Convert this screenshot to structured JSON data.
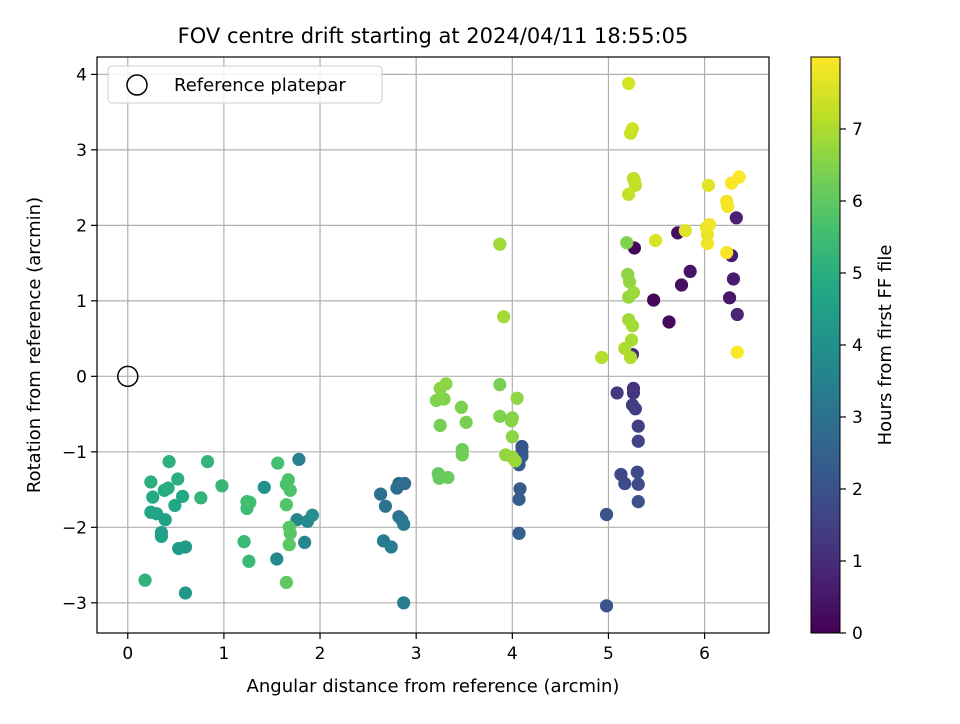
{
  "chart_data": {
    "type": "scatter",
    "title": "FOV centre drift starting at 2024/04/11 18:55:05",
    "xlabel": "Angular distance from reference (arcmin)",
    "ylabel": "Rotation from reference (arcmin)",
    "xlim": [
      -0.32,
      6.67
    ],
    "ylim": [
      -3.4,
      4.23
    ],
    "x_ticks": [
      0,
      1,
      2,
      3,
      4,
      5,
      6
    ],
    "y_ticks": [
      -3,
      -2,
      -1,
      0,
      1,
      2,
      3,
      4
    ],
    "grid": true,
    "legend": {
      "placement": "top-left",
      "entries": [
        "Reference platepar"
      ]
    },
    "reference_point": {
      "x": 0,
      "y": 0
    },
    "colorbar": {
      "label": "Hours from first FF file",
      "colormap": "viridis",
      "range": [
        0,
        8
      ],
      "ticks": [
        0,
        1,
        2,
        3,
        4,
        5,
        6,
        7
      ]
    },
    "points": [
      {
        "x": 5.27,
        "y": 1.7,
        "h": 0.1
      },
      {
        "x": 5.47,
        "y": 1.01,
        "h": 0.15
      },
      {
        "x": 5.63,
        "y": 0.72,
        "h": 0.2
      },
      {
        "x": 5.72,
        "y": 1.9,
        "h": 0.3
      },
      {
        "x": 5.76,
        "y": 1.21,
        "h": 0.35
      },
      {
        "x": 5.85,
        "y": 1.39,
        "h": 0.45
      },
      {
        "x": 6.26,
        "y": 1.04,
        "h": 0.5
      },
      {
        "x": 6.28,
        "y": 1.6,
        "h": 0.6
      },
      {
        "x": 6.3,
        "y": 1.29,
        "h": 0.65
      },
      {
        "x": 6.33,
        "y": 2.1,
        "h": 0.75
      },
      {
        "x": 6.34,
        "y": 0.82,
        "h": 0.85
      },
      {
        "x": 5.25,
        "y": 0.29,
        "h": 1.05
      },
      {
        "x": 5.26,
        "y": -0.16,
        "h": 1.15
      },
      {
        "x": 5.26,
        "y": -0.22,
        "h": 1.2
      },
      {
        "x": 5.09,
        "y": -0.22,
        "h": 1.3
      },
      {
        "x": 5.25,
        "y": -0.38,
        "h": 1.35
      },
      {
        "x": 5.28,
        "y": -0.43,
        "h": 1.45
      },
      {
        "x": 5.31,
        "y": -0.66,
        "h": 1.5
      },
      {
        "x": 5.31,
        "y": -0.86,
        "h": 1.6
      },
      {
        "x": 5.13,
        "y": -1.3,
        "h": 1.65
      },
      {
        "x": 5.3,
        "y": -1.27,
        "h": 1.75
      },
      {
        "x": 5.17,
        "y": -1.42,
        "h": 1.8
      },
      {
        "x": 5.31,
        "y": -1.43,
        "h": 1.85
      },
      {
        "x": 5.31,
        "y": -1.66,
        "h": 1.95
      },
      {
        "x": 4.98,
        "y": -1.83,
        "h": 2.0
      },
      {
        "x": 4.98,
        "y": -3.04,
        "h": 2.05
      },
      {
        "x": 4.1,
        "y": -0.93,
        "h": 2.1
      },
      {
        "x": 4.1,
        "y": -1.0,
        "h": 2.15
      },
      {
        "x": 4.1,
        "y": -1.06,
        "h": 2.2
      },
      {
        "x": 4.07,
        "y": -1.17,
        "h": 2.25
      },
      {
        "x": 4.08,
        "y": -1.49,
        "h": 2.3
      },
      {
        "x": 4.07,
        "y": -1.63,
        "h": 2.35
      },
      {
        "x": 4.07,
        "y": -2.08,
        "h": 2.4
      },
      {
        "x": 2.82,
        "y": -1.42,
        "h": 2.7
      },
      {
        "x": 2.88,
        "y": -1.42,
        "h": 2.8
      },
      {
        "x": 2.8,
        "y": -1.48,
        "h": 2.85
      },
      {
        "x": 2.63,
        "y": -1.56,
        "h": 2.95
      },
      {
        "x": 2.68,
        "y": -1.72,
        "h": 3.05
      },
      {
        "x": 2.82,
        "y": -1.86,
        "h": 3.1
      },
      {
        "x": 2.85,
        "y": -1.9,
        "h": 3.15
      },
      {
        "x": 2.87,
        "y": -1.96,
        "h": 3.2
      },
      {
        "x": 2.66,
        "y": -2.18,
        "h": 3.25
      },
      {
        "x": 2.74,
        "y": -2.26,
        "h": 3.35
      },
      {
        "x": 2.87,
        "y": -3.0,
        "h": 3.4
      },
      {
        "x": 1.78,
        "y": -1.1,
        "h": 3.5
      },
      {
        "x": 1.76,
        "y": -1.9,
        "h": 3.6
      },
      {
        "x": 1.84,
        "y": -2.2,
        "h": 3.7
      },
      {
        "x": 1.55,
        "y": -2.42,
        "h": 3.8
      },
      {
        "x": 1.87,
        "y": -1.92,
        "h": 3.85
      },
      {
        "x": 1.92,
        "y": -1.84,
        "h": 3.95
      },
      {
        "x": 1.42,
        "y": -1.47,
        "h": 4.0
      },
      {
        "x": 0.6,
        "y": -2.87,
        "h": 4.2
      },
      {
        "x": 0.6,
        "y": -2.26,
        "h": 4.3
      },
      {
        "x": 0.53,
        "y": -2.28,
        "h": 4.35
      },
      {
        "x": 0.35,
        "y": -2.07,
        "h": 4.4
      },
      {
        "x": 0.35,
        "y": -2.12,
        "h": 4.5
      },
      {
        "x": 0.39,
        "y": -1.9,
        "h": 4.55
      },
      {
        "x": 0.3,
        "y": -1.82,
        "h": 4.6
      },
      {
        "x": 0.24,
        "y": -1.8,
        "h": 4.7
      },
      {
        "x": 0.49,
        "y": -1.71,
        "h": 4.75
      },
      {
        "x": 0.57,
        "y": -1.59,
        "h": 4.8
      },
      {
        "x": 0.26,
        "y": -1.6,
        "h": 4.85
      },
      {
        "x": 0.38,
        "y": -1.51,
        "h": 4.9
      },
      {
        "x": 0.42,
        "y": -1.48,
        "h": 4.95
      },
      {
        "x": 0.52,
        "y": -1.36,
        "h": 5.0
      },
      {
        "x": 0.24,
        "y": -1.4,
        "h": 5.05
      },
      {
        "x": 0.43,
        "y": -1.13,
        "h": 5.1
      },
      {
        "x": 0.18,
        "y": -2.7,
        "h": 5.15
      },
      {
        "x": 0.76,
        "y": -1.61,
        "h": 5.2
      },
      {
        "x": 0.83,
        "y": -1.13,
        "h": 5.25
      },
      {
        "x": 0.98,
        "y": -1.45,
        "h": 5.3
      },
      {
        "x": 1.21,
        "y": -2.19,
        "h": 5.35
      },
      {
        "x": 1.26,
        "y": -2.45,
        "h": 5.4
      },
      {
        "x": 1.24,
        "y": -1.66,
        "h": 5.45
      },
      {
        "x": 1.24,
        "y": -1.75,
        "h": 5.5
      },
      {
        "x": 1.27,
        "y": -1.67,
        "h": 5.55
      },
      {
        "x": 1.56,
        "y": -1.15,
        "h": 5.6
      },
      {
        "x": 1.65,
        "y": -1.43,
        "h": 5.65
      },
      {
        "x": 1.67,
        "y": -1.37,
        "h": 5.7
      },
      {
        "x": 1.69,
        "y": -1.51,
        "h": 5.75
      },
      {
        "x": 1.65,
        "y": -1.7,
        "h": 5.8
      },
      {
        "x": 1.68,
        "y": -2.0,
        "h": 5.85
      },
      {
        "x": 1.69,
        "y": -2.08,
        "h": 5.9
      },
      {
        "x": 1.68,
        "y": -2.23,
        "h": 5.95
      },
      {
        "x": 1.65,
        "y": -2.73,
        "h": 6.0
      },
      {
        "x": 3.23,
        "y": -1.29,
        "h": 6.05
      },
      {
        "x": 3.24,
        "y": -1.35,
        "h": 6.1
      },
      {
        "x": 3.33,
        "y": -1.34,
        "h": 6.15
      },
      {
        "x": 3.48,
        "y": -0.97,
        "h": 6.2
      },
      {
        "x": 3.48,
        "y": -1.04,
        "h": 6.25
      },
      {
        "x": 3.25,
        "y": -0.65,
        "h": 6.3
      },
      {
        "x": 3.52,
        "y": -0.61,
        "h": 6.35
      },
      {
        "x": 3.47,
        "y": -0.41,
        "h": 6.4
      },
      {
        "x": 3.21,
        "y": -0.32,
        "h": 6.45
      },
      {
        "x": 3.29,
        "y": -0.3,
        "h": 6.5
      },
      {
        "x": 3.25,
        "y": -0.16,
        "h": 6.55
      },
      {
        "x": 3.31,
        "y": -0.1,
        "h": 6.6
      },
      {
        "x": 3.87,
        "y": -0.11,
        "h": 6.4
      },
      {
        "x": 3.87,
        "y": -0.53,
        "h": 6.45
      },
      {
        "x": 4.0,
        "y": -0.55,
        "h": 6.5
      },
      {
        "x": 3.99,
        "y": -0.59,
        "h": 6.55
      },
      {
        "x": 4.0,
        "y": -0.8,
        "h": 6.6
      },
      {
        "x": 4.05,
        "y": -0.29,
        "h": 6.65
      },
      {
        "x": 3.93,
        "y": -1.04,
        "h": 6.7
      },
      {
        "x": 4.0,
        "y": -1.07,
        "h": 6.75
      },
      {
        "x": 4.03,
        "y": -1.12,
        "h": 6.8
      },
      {
        "x": 3.87,
        "y": 1.75,
        "h": 6.85
      },
      {
        "x": 3.91,
        "y": 0.79,
        "h": 6.9
      },
      {
        "x": 5.19,
        "y": 1.77,
        "h": 6.5
      },
      {
        "x": 5.2,
        "y": 1.35,
        "h": 6.6
      },
      {
        "x": 5.22,
        "y": 1.25,
        "h": 6.7
      },
      {
        "x": 5.21,
        "y": 1.05,
        "h": 6.75
      },
      {
        "x": 5.26,
        "y": 1.11,
        "h": 6.8
      },
      {
        "x": 5.21,
        "y": 0.75,
        "h": 6.85
      },
      {
        "x": 5.25,
        "y": 0.67,
        "h": 6.9
      },
      {
        "x": 5.24,
        "y": 0.48,
        "h": 6.95
      },
      {
        "x": 5.17,
        "y": 0.37,
        "h": 7.0
      },
      {
        "x": 5.23,
        "y": 0.25,
        "h": 7.05
      },
      {
        "x": 4.93,
        "y": 0.25,
        "h": 7.1
      },
      {
        "x": 5.26,
        "y": 2.62,
        "h": 7.15
      },
      {
        "x": 5.27,
        "y": 2.59,
        "h": 7.2
      },
      {
        "x": 5.28,
        "y": 2.53,
        "h": 7.25
      },
      {
        "x": 5.21,
        "y": 2.41,
        "h": 7.3
      },
      {
        "x": 5.23,
        "y": 3.22,
        "h": 7.35
      },
      {
        "x": 5.25,
        "y": 3.28,
        "h": 7.4
      },
      {
        "x": 5.21,
        "y": 3.88,
        "h": 7.5
      },
      {
        "x": 5.49,
        "y": 1.8,
        "h": 7.55
      },
      {
        "x": 5.8,
        "y": 1.93,
        "h": 7.6
      },
      {
        "x": 6.04,
        "y": 2.53,
        "h": 7.65
      },
      {
        "x": 6.02,
        "y": 1.97,
        "h": 7.7
      },
      {
        "x": 6.03,
        "y": 1.88,
        "h": 7.75
      },
      {
        "x": 6.03,
        "y": 1.76,
        "h": 7.8
      },
      {
        "x": 6.05,
        "y": 2.01,
        "h": 7.85
      },
      {
        "x": 6.23,
        "y": 2.32,
        "h": 7.9
      },
      {
        "x": 6.24,
        "y": 2.25,
        "h": 7.92
      },
      {
        "x": 6.23,
        "y": 1.64,
        "h": 7.94
      },
      {
        "x": 6.28,
        "y": 2.56,
        "h": 7.95
      },
      {
        "x": 6.36,
        "y": 2.64,
        "h": 7.97
      },
      {
        "x": 6.34,
        "y": 0.32,
        "h": 7.99
      }
    ]
  }
}
